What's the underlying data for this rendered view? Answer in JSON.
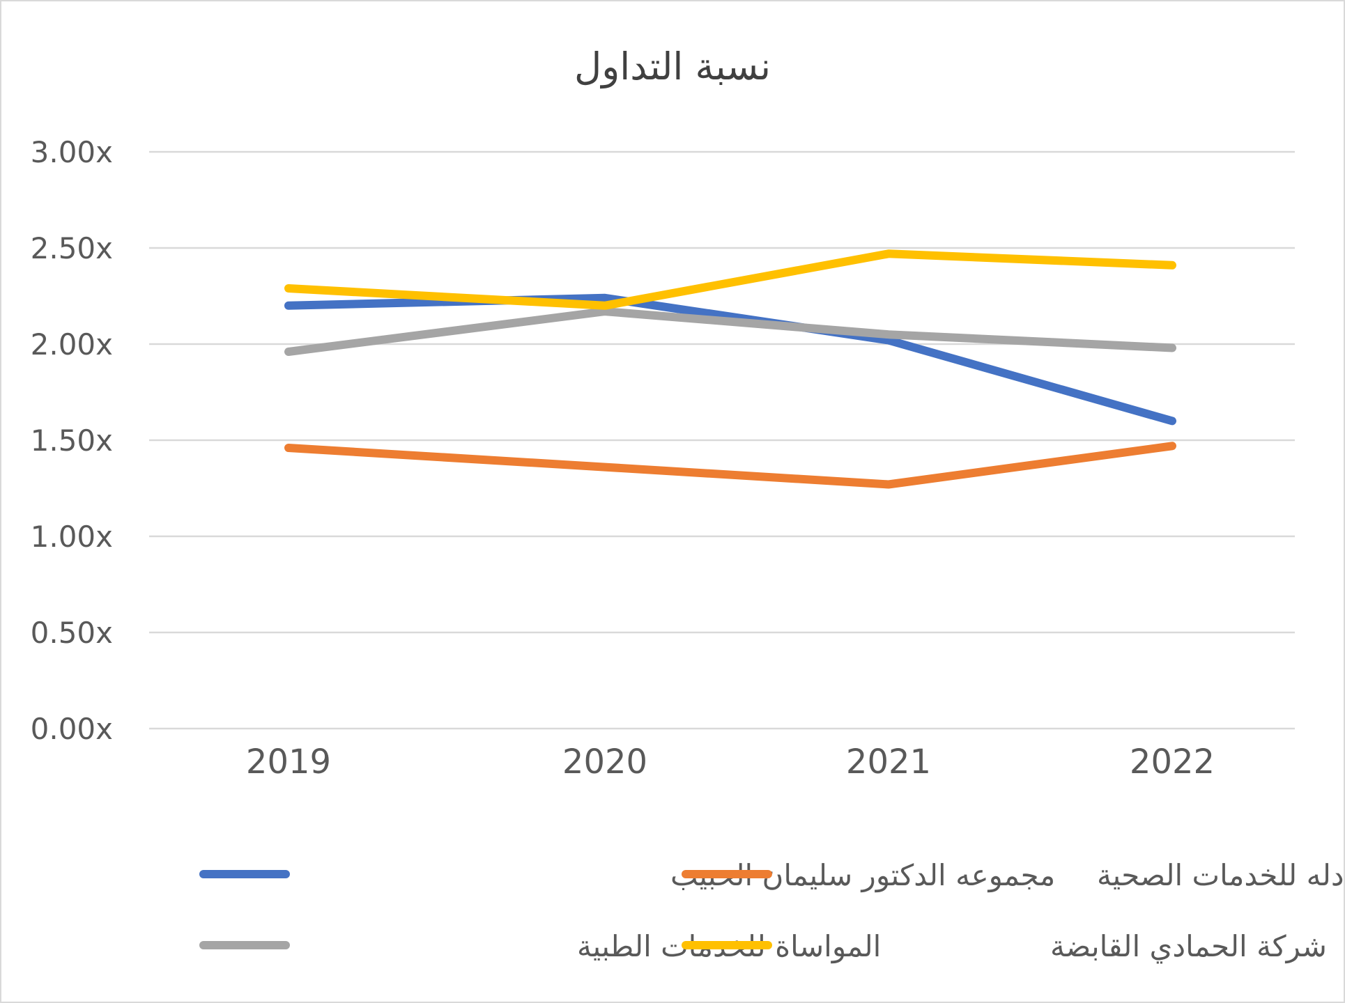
{
  "chart_data": {
    "type": "line",
    "title": "نسبة التداول",
    "xlabel": "",
    "ylabel": "",
    "categories": [
      "2019",
      "2020",
      "2021",
      "2022"
    ],
    "ylim": [
      0,
      3
    ],
    "yticks": [
      0,
      0.5,
      1,
      1.5,
      2,
      2.5,
      3
    ],
    "ytick_labels": [
      "0.00x",
      "0.50x",
      "1.00x",
      "1.50x",
      "2.00x",
      "2.50x",
      "3.00x"
    ],
    "grid": true,
    "legend_position": "bottom",
    "series": [
      {
        "name": "مجموعه الدكتور سليمان الحبيب",
        "color": "#4472C4",
        "values": [
          2.2,
          2.24,
          2.02,
          1.6
        ]
      },
      {
        "name": "شركة دله للخدمات الصحية",
        "color": "#ED7D31",
        "values": [
          1.46,
          1.36,
          1.27,
          1.47
        ]
      },
      {
        "name": "المواساة للخدمات الطبية",
        "color": "#A5A5A5",
        "values": [
          1.96,
          2.17,
          2.05,
          1.98
        ]
      },
      {
        "name": "شركة الحمادي القابضة",
        "color": "#FFC000",
        "values": [
          2.29,
          2.2,
          2.47,
          2.41
        ]
      }
    ]
  }
}
